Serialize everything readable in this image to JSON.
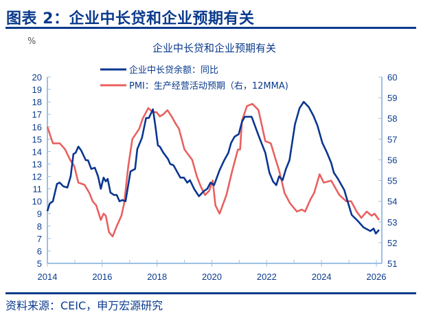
{
  "figure": {
    "title": "图表 2：企业中长贷和企业预期有关",
    "source": "资料来源：CEIC，申万宏源研究"
  },
  "colors": {
    "title": "#0a3a8c",
    "series_loans": "#0a3590",
    "series_pmi": "#e8605f",
    "axis": "#9cc0e4"
  },
  "chart_data": {
    "type": "line",
    "title": "企业中长贷和企业预期有关",
    "left_unit": "%",
    "x_ticks": [
      "2014",
      "2016",
      "2018",
      "2020",
      "2022",
      "2024",
      "2026"
    ],
    "xlim": [
      2014,
      2026.2
    ],
    "y_left": {
      "range": [
        5,
        20
      ],
      "ticks": [
        "5",
        "6",
        "7",
        "8",
        "9",
        "10",
        "11",
        "12",
        "13",
        "14",
        "15",
        "16",
        "17",
        "18",
        "19",
        "20"
      ]
    },
    "y_right": {
      "range": [
        51,
        60
      ],
      "ticks": [
        "51",
        "52",
        "53",
        "54",
        "55",
        "56",
        "57",
        "58",
        "59",
        "60"
      ]
    },
    "grid": false,
    "legend_placement": "top",
    "series": [
      {
        "name": "企业中长贷余额：同比",
        "axis": "left",
        "color": "#0a3590",
        "x": [
          2014.0,
          2014.08,
          2014.2,
          2014.35,
          2014.45,
          2014.58,
          2014.73,
          2014.85,
          2014.95,
          2015.03,
          2015.13,
          2015.23,
          2015.4,
          2015.48,
          2015.6,
          2015.73,
          2015.85,
          2015.95,
          2016.05,
          2016.13,
          2016.2,
          2016.3,
          2016.43,
          2016.53,
          2016.63,
          2016.73,
          2016.85,
          2017.03,
          2017.2,
          2017.28,
          2017.45,
          2017.6,
          2017.7,
          2017.85,
          2017.93,
          2018.03,
          2018.1,
          2018.23,
          2018.4,
          2018.48,
          2018.6,
          2018.7,
          2018.85,
          2018.98,
          2019.1,
          2019.2,
          2019.35,
          2019.53,
          2019.7,
          2019.83,
          2019.95,
          2020.08,
          2020.28,
          2020.45,
          2020.6,
          2020.7,
          2020.83,
          2020.98,
          2021.1,
          2021.2,
          2021.45,
          2021.7,
          2021.95,
          2022.1,
          2022.23,
          2022.35,
          2022.45,
          2022.58,
          2022.7,
          2022.83,
          2023.03,
          2023.2,
          2023.35,
          2023.53,
          2023.7,
          2023.85,
          2024.03,
          2024.2,
          2024.35,
          2024.45,
          2024.6,
          2024.83,
          2024.95,
          2025.1,
          2025.33,
          2025.53,
          2025.78,
          2025.9,
          2025.98,
          2026.1
        ],
        "values": [
          9.2,
          9.8,
          10.0,
          11.4,
          11.5,
          11.2,
          11.1,
          12.0,
          13.8,
          13.9,
          14.4,
          14.1,
          13.3,
          13.3,
          12.6,
          12.7,
          12.0,
          11.0,
          11.9,
          11.6,
          11.8,
          10.7,
          10.5,
          10.5,
          10.0,
          10.1,
          10.0,
          12.4,
          12.6,
          14.2,
          15.1,
          16.7,
          16.7,
          17.4,
          16.2,
          14.5,
          14.4,
          13.9,
          13.4,
          13.0,
          12.9,
          12.5,
          11.9,
          11.9,
          11.5,
          11.7,
          11.0,
          10.4,
          10.8,
          11.0,
          11.5,
          11.3,
          12.5,
          13.3,
          13.9,
          14.7,
          15.2,
          15.4,
          16.4,
          16.8,
          16.8,
          15.3,
          13.9,
          12.3,
          11.6,
          11.3,
          12.0,
          11.7,
          12.6,
          13.3,
          16.2,
          17.5,
          18.0,
          17.6,
          16.9,
          16.1,
          14.7,
          13.9,
          13.1,
          12.3,
          11.8,
          10.9,
          10.0,
          8.9,
          8.4,
          7.9,
          7.6,
          7.8,
          7.4,
          7.7
        ]
      },
      {
        "name": "PMI：生产经营活动预期（右，12MMA)",
        "axis": "right",
        "color": "#e8605f",
        "x": [
          2014.0,
          2014.2,
          2014.45,
          2014.65,
          2014.83,
          2014.98,
          2015.13,
          2015.35,
          2015.53,
          2015.65,
          2015.78,
          2015.95,
          2016.05,
          2016.13,
          2016.25,
          2016.38,
          2016.53,
          2016.7,
          2016.8,
          2016.95,
          2017.1,
          2017.2,
          2017.35,
          2017.48,
          2017.68,
          2017.85,
          2017.98,
          2018.1,
          2018.23,
          2018.38,
          2018.53,
          2018.7,
          2018.8,
          2019.0,
          2019.28,
          2019.45,
          2019.6,
          2019.75,
          2019.9,
          2020.03,
          2020.13,
          2020.28,
          2020.53,
          2020.73,
          2020.95,
          2021.03,
          2021.1,
          2021.28,
          2021.48,
          2021.7,
          2021.95,
          2022.15,
          2022.33,
          2022.45,
          2022.65,
          2022.85,
          2023.1,
          2023.28,
          2023.4,
          2023.6,
          2023.73,
          2023.93,
          2024.08,
          2024.35,
          2024.65,
          2024.9,
          2025.08,
          2025.28,
          2025.45,
          2025.65,
          2025.83,
          2025.93,
          2026.1
        ],
        "values": [
          57.6,
          56.8,
          56.8,
          56.5,
          56.0,
          55.7,
          54.9,
          54.8,
          54.4,
          54.0,
          53.8,
          53.1,
          53.4,
          53.3,
          52.5,
          52.3,
          52.8,
          53.3,
          53.9,
          55.7,
          57.0,
          57.2,
          57.5,
          58.0,
          58.5,
          58.3,
          58.3,
          58.1,
          58.2,
          58.4,
          58.1,
          57.7,
          57.5,
          56.5,
          56.0,
          55.2,
          54.7,
          54.3,
          54.5,
          55.0,
          53.8,
          53.4,
          54.3,
          55.4,
          56.5,
          56.5,
          57.9,
          58.6,
          58.7,
          58.4,
          56.9,
          56.8,
          56.0,
          55.5,
          54.4,
          53.9,
          53.5,
          53.6,
          53.5,
          54.1,
          54.4,
          55.3,
          54.9,
          55.0,
          54.3,
          54.0,
          54.0,
          53.5,
          53.2,
          53.5,
          53.3,
          53.4,
          53.1
        ]
      }
    ]
  }
}
